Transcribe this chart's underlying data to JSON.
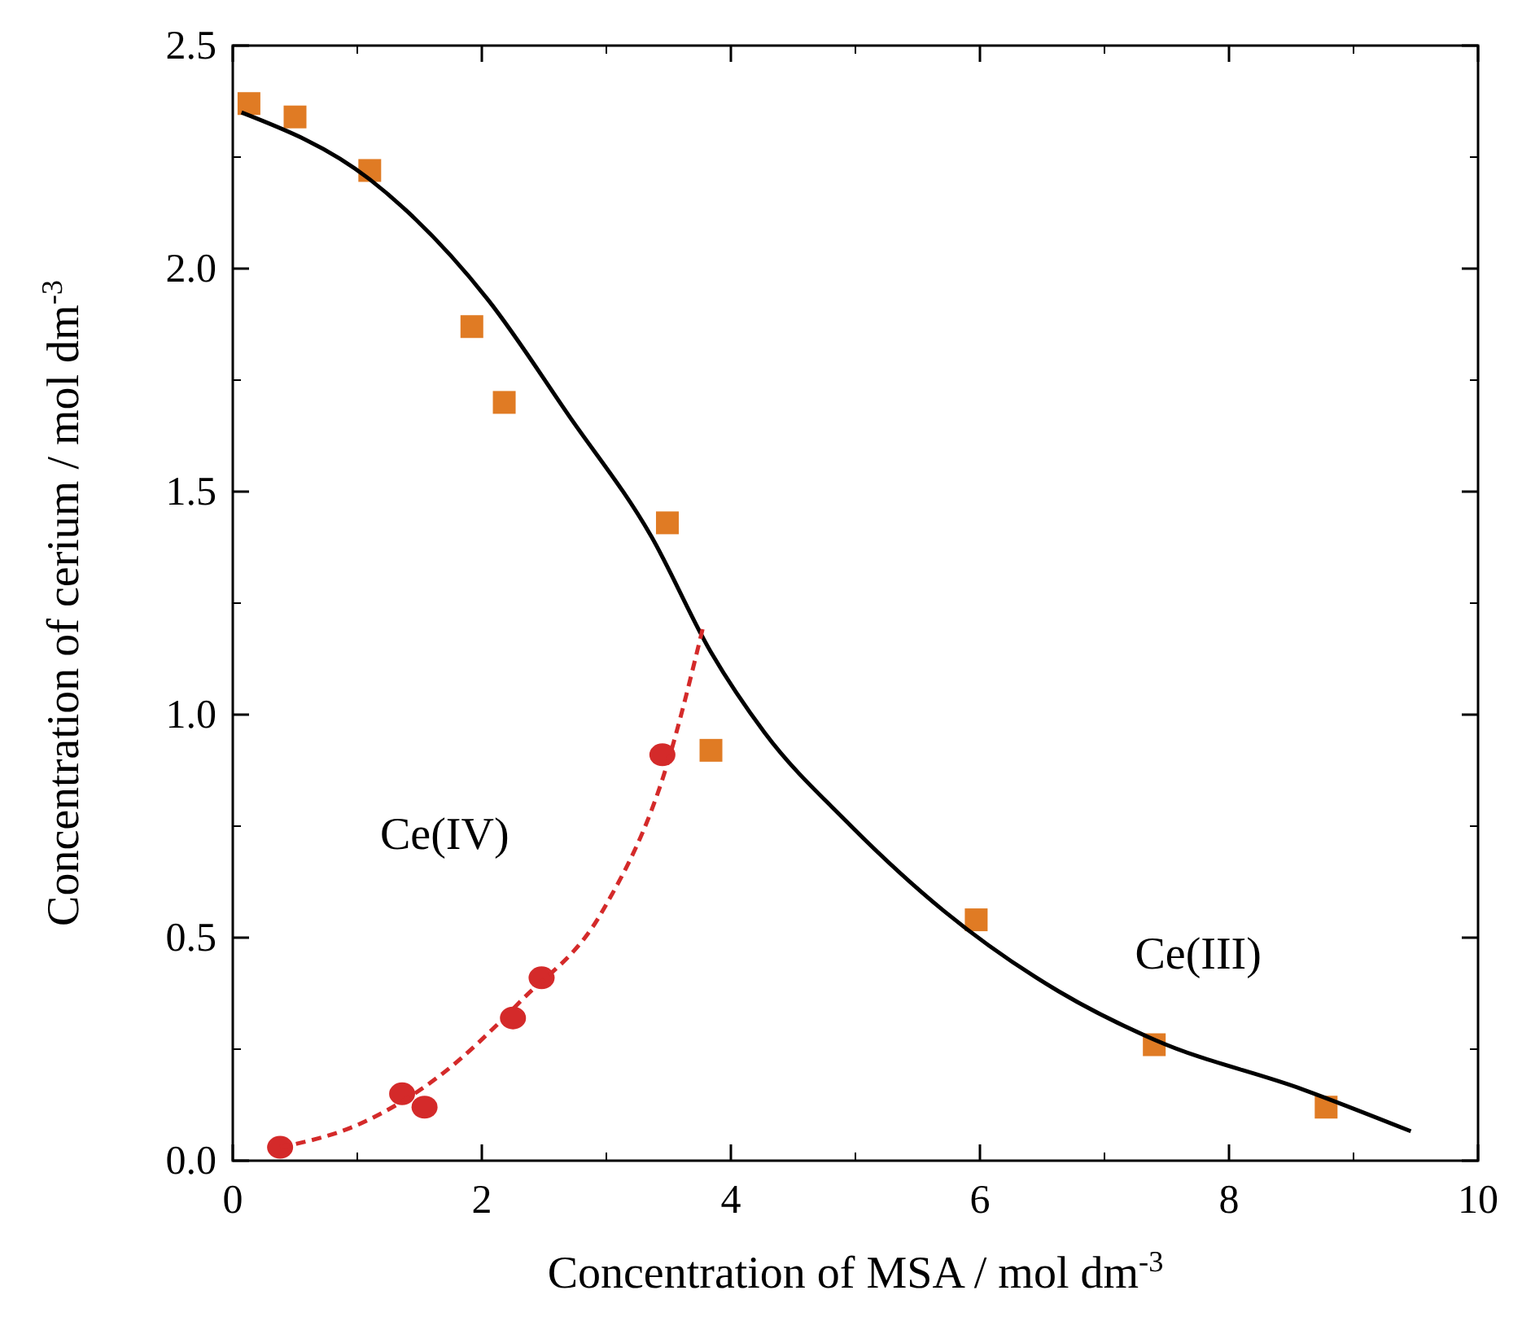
{
  "chart_data": {
    "type": "scatter",
    "xlabel": "Concentration of MSA / mol dm$^{-3}$",
    "ylabel": "Concentration of cerium / mol dm$^{-3}$",
    "xlim": [
      0,
      10
    ],
    "xticks": [
      0,
      2,
      4,
      6,
      8,
      10
    ],
    "ylim": [
      0,
      2.5
    ],
    "yticks": [
      {
        "value": 0,
        "label": "0.0"
      },
      {
        "value": 0.5,
        "label": "0.5"
      },
      {
        "value": 1,
        "label": "1.0"
      },
      {
        "value": 1.5,
        "label": "1.5"
      },
      {
        "value": 2,
        "label": "2.0"
      },
      {
        "value": 2.5,
        "label": "2.5"
      }
    ],
    "grid": false,
    "legend": false,
    "series": [
      {
        "name": "Ce(III)",
        "marker": "square",
        "color": "#e07b24",
        "x": [
          0.13,
          0.5,
          1.1,
          1.92,
          2.18,
          3.49,
          3.84,
          5.97,
          7.4,
          8.78
        ],
        "values": [
          2.37,
          2.34,
          2.22,
          1.87,
          1.7,
          1.43,
          0.92,
          0.54,
          0.26,
          0.12
        ]
      },
      {
        "name": "Ce(IV)",
        "marker": "circle",
        "color": "#d42a2a",
        "x": [
          0.38,
          1.36,
          1.54,
          2.25,
          2.48,
          3.45
        ],
        "values": [
          0.03,
          0.15,
          0.12,
          0.32,
          0.41,
          0.91
        ]
      },
      {
        "type": "line",
        "marker": "none",
        "line_style": "solid",
        "color": "#000000",
        "x": [
          0.07,
          1.1,
          2.05,
          2.7,
          3.36,
          3.84,
          4.27,
          4.93,
          5.71,
          6.63,
          7.41,
          8.59,
          9.46
        ],
        "values": [
          2.35,
          2.2,
          1.93,
          1.67,
          1.4,
          1.14,
          0.96,
          0.76,
          0.56,
          0.38,
          0.27,
          0.16,
          0.066
        ]
      },
      {
        "type": "line",
        "marker": "none",
        "line_style": "dashed",
        "color": "#d42a2a",
        "x": [
          0.38,
          1.0,
          1.66,
          2.32,
          2.97,
          3.49,
          3.78
        ],
        "values": [
          0.03,
          0.08,
          0.19,
          0.36,
          0.56,
          0.89,
          1.2
        ]
      }
    ]
  }
}
